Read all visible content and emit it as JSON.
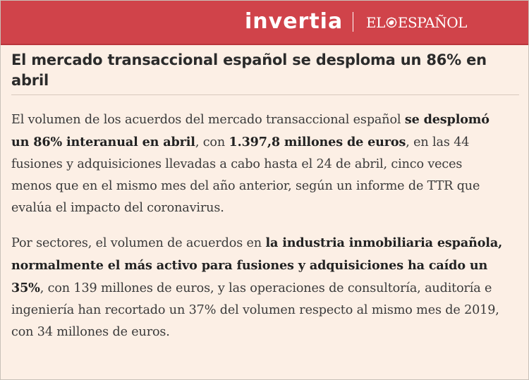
{
  "header": {
    "brand": "invertia",
    "partner_left": "EL",
    "partner_right": "ESPAÑOL",
    "accent_color": "#d0434a"
  },
  "article": {
    "title": "El mercado transaccional español se desploma un 86% en abril",
    "p1": {
      "t1": "El volumen de los acuerdos del mercado transaccional español ",
      "b1": "se desplomó un 86% interanual en abril",
      "t2": ", con ",
      "b2": "1.397,8 millones de euros",
      "t3": ", en las 44 fusiones y adquisiciones llevadas a cabo hasta el 24 de abril, cinco veces menos que en el mismo mes del año anterior, según un informe de TTR que evalúa el impacto del coronavirus."
    },
    "p2": {
      "t1": "Por sectores, el volumen de acuerdos en ",
      "b1": "la industria inmobiliaria española, normalmente el más activo para fusiones y adquisiciones ha caído un 35%",
      "t2": ", con 139 millones de euros, y las operaciones de consultoría, auditoría e ingeniería han recortado un 37% del volumen respecto al mismo mes de 2019, con 34 millones de euros."
    }
  }
}
